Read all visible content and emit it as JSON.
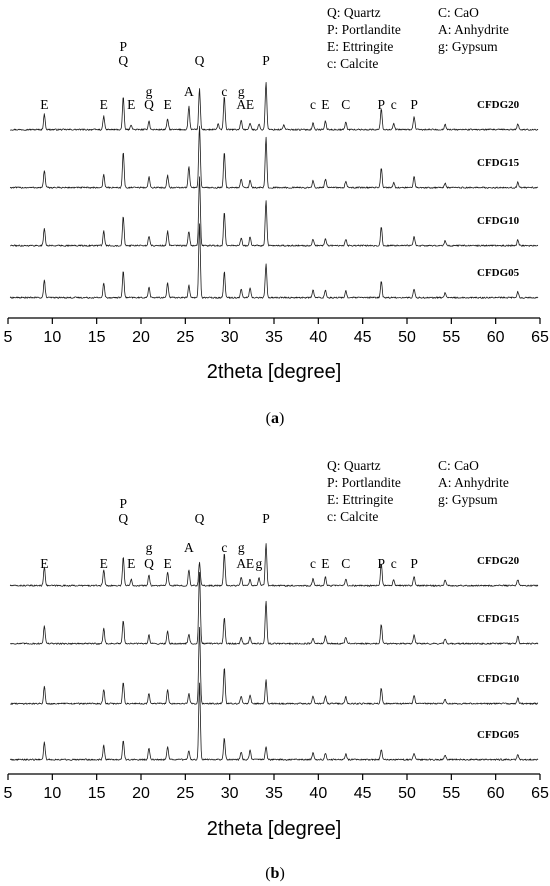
{
  "chart_data": [
    {
      "type": "line",
      "panel": "a",
      "caption_letter": "a",
      "xlabel": "2theta [degree]",
      "ylabel": "",
      "xlim": [
        5,
        65
      ],
      "x_ticks": [
        5,
        10,
        15,
        20,
        25,
        30,
        35,
        40,
        45,
        50,
        55,
        60,
        65
      ],
      "legend": [
        {
          "code": "Q",
          "text": "Q: Quartz"
        },
        {
          "code": "C",
          "text": "C: CaO"
        },
        {
          "code": "P",
          "text": "P: Portlandite"
        },
        {
          "code": "A",
          "text": "A: Anhydrite"
        },
        {
          "code": "E",
          "text": "E: Ettringite"
        },
        {
          "code": "g",
          "text": "g: Gypsum"
        },
        {
          "code": "c",
          "text": "c: Calcite"
        }
      ],
      "series": [
        {
          "name": "CFDG20",
          "peaks": [
            {
              "x": 9.1,
              "h": 0.32
            },
            {
              "x": 15.8,
              "h": 0.28
            },
            {
              "x": 18.0,
              "h": 0.68
            },
            {
              "x": 18.9,
              "h": 0.1
            },
            {
              "x": 20.9,
              "h": 0.18
            },
            {
              "x": 23.0,
              "h": 0.22
            },
            {
              "x": 25.4,
              "h": 0.48
            },
            {
              "x": 26.6,
              "h": 0.85
            },
            {
              "x": 28.7,
              "h": 0.12
            },
            {
              "x": 29.4,
              "h": 0.7
            },
            {
              "x": 31.3,
              "h": 0.2
            },
            {
              "x": 32.3,
              "h": 0.14
            },
            {
              "x": 33.3,
              "h": 0.12
            },
            {
              "x": 34.1,
              "h": 1.0
            },
            {
              "x": 36.1,
              "h": 0.1
            },
            {
              "x": 39.4,
              "h": 0.14
            },
            {
              "x": 40.8,
              "h": 0.18
            },
            {
              "x": 43.1,
              "h": 0.16
            },
            {
              "x": 47.1,
              "h": 0.45
            },
            {
              "x": 48.5,
              "h": 0.12
            },
            {
              "x": 50.8,
              "h": 0.28
            },
            {
              "x": 54.3,
              "h": 0.12
            },
            {
              "x": 62.5,
              "h": 0.12
            }
          ]
        },
        {
          "name": "CFDG15",
          "peaks": [
            {
              "x": 9.1,
              "h": 0.36
            },
            {
              "x": 15.8,
              "h": 0.28
            },
            {
              "x": 18.0,
              "h": 0.75
            },
            {
              "x": 20.9,
              "h": 0.22
            },
            {
              "x": 23.0,
              "h": 0.26
            },
            {
              "x": 25.4,
              "h": 0.44
            },
            {
              "x": 26.6,
              "h": 1.3
            },
            {
              "x": 29.4,
              "h": 0.75
            },
            {
              "x": 31.3,
              "h": 0.18
            },
            {
              "x": 32.3,
              "h": 0.16
            },
            {
              "x": 34.1,
              "h": 1.05
            },
            {
              "x": 39.4,
              "h": 0.14
            },
            {
              "x": 40.8,
              "h": 0.18
            },
            {
              "x": 43.1,
              "h": 0.14
            },
            {
              "x": 47.1,
              "h": 0.42
            },
            {
              "x": 48.5,
              "h": 0.1
            },
            {
              "x": 50.8,
              "h": 0.24
            },
            {
              "x": 54.3,
              "h": 0.1
            },
            {
              "x": 62.5,
              "h": 0.12
            }
          ]
        },
        {
          "name": "CFDG10",
          "peaks": [
            {
              "x": 9.1,
              "h": 0.36
            },
            {
              "x": 15.8,
              "h": 0.3
            },
            {
              "x": 18.0,
              "h": 0.62
            },
            {
              "x": 20.9,
              "h": 0.2
            },
            {
              "x": 23.0,
              "h": 0.3
            },
            {
              "x": 25.4,
              "h": 0.3
            },
            {
              "x": 26.6,
              "h": 1.45
            },
            {
              "x": 29.4,
              "h": 0.7
            },
            {
              "x": 31.3,
              "h": 0.16
            },
            {
              "x": 32.3,
              "h": 0.18
            },
            {
              "x": 34.1,
              "h": 0.95
            },
            {
              "x": 39.4,
              "h": 0.14
            },
            {
              "x": 40.8,
              "h": 0.16
            },
            {
              "x": 43.1,
              "h": 0.14
            },
            {
              "x": 47.1,
              "h": 0.4
            },
            {
              "x": 50.8,
              "h": 0.2
            },
            {
              "x": 54.3,
              "h": 0.1
            },
            {
              "x": 62.5,
              "h": 0.12
            }
          ]
        },
        {
          "name": "CFDG05",
          "peaks": [
            {
              "x": 9.1,
              "h": 0.36
            },
            {
              "x": 15.8,
              "h": 0.3
            },
            {
              "x": 18.0,
              "h": 0.55
            },
            {
              "x": 20.9,
              "h": 0.22
            },
            {
              "x": 23.0,
              "h": 0.32
            },
            {
              "x": 25.4,
              "h": 0.26
            },
            {
              "x": 26.6,
              "h": 1.55
            },
            {
              "x": 29.4,
              "h": 0.55
            },
            {
              "x": 31.3,
              "h": 0.18
            },
            {
              "x": 32.3,
              "h": 0.2
            },
            {
              "x": 34.1,
              "h": 0.7
            },
            {
              "x": 39.4,
              "h": 0.16
            },
            {
              "x": 40.8,
              "h": 0.16
            },
            {
              "x": 43.1,
              "h": 0.14
            },
            {
              "x": 47.1,
              "h": 0.35
            },
            {
              "x": 50.8,
              "h": 0.18
            },
            {
              "x": 54.3,
              "h": 0.1
            },
            {
              "x": 62.5,
              "h": 0.12
            }
          ]
        }
      ],
      "annotations": [
        {
          "text": "E",
          "x": 9.1,
          "row": 3
        },
        {
          "text": "E",
          "x": 15.8,
          "row": 3
        },
        {
          "text": "P",
          "x": 18.0,
          "row": 0
        },
        {
          "text": "Q",
          "x": 18.0,
          "row": 1
        },
        {
          "text": "E",
          "x": 18.9,
          "row": 3
        },
        {
          "text": "g",
          "x": 20.9,
          "row": 2
        },
        {
          "text": "Q",
          "x": 20.9,
          "row": 3
        },
        {
          "text": "E",
          "x": 23.0,
          "row": 3
        },
        {
          "text": "A",
          "x": 25.4,
          "row": 2
        },
        {
          "text": "Q",
          "x": 26.6,
          "row": 1
        },
        {
          "text": "c",
          "x": 29.4,
          "row": 2
        },
        {
          "text": "g",
          "x": 31.3,
          "row": 2
        },
        {
          "text": "A",
          "x": 31.3,
          "row": 3
        },
        {
          "text": "E",
          "x": 32.3,
          "row": 3
        },
        {
          "text": "P",
          "x": 34.1,
          "row": 1
        },
        {
          "text": "c",
          "x": 39.4,
          "row": 3
        },
        {
          "text": "E",
          "x": 40.8,
          "row": 3
        },
        {
          "text": "C",
          "x": 43.1,
          "row": 3
        },
        {
          "text": "P",
          "x": 47.1,
          "row": 3
        },
        {
          "text": "c",
          "x": 48.5,
          "row": 3
        },
        {
          "text": "P",
          "x": 50.8,
          "row": 3
        }
      ]
    },
    {
      "type": "line",
      "panel": "b",
      "caption_letter": "b",
      "xlabel": "2theta [degree]",
      "ylabel": "",
      "xlim": [
        5,
        65
      ],
      "x_ticks": [
        5,
        10,
        15,
        20,
        25,
        30,
        35,
        40,
        45,
        50,
        55,
        60,
        65
      ],
      "legend": [
        {
          "code": "Q",
          "text": "Q: Quartz"
        },
        {
          "code": "C",
          "text": "C: CaO"
        },
        {
          "code": "P",
          "text": "P: Portlandite"
        },
        {
          "code": "A",
          "text": "A: Anhydrite"
        },
        {
          "code": "E",
          "text": "E: Ettringite"
        },
        {
          "code": "g",
          "text": "g: Gypsum"
        },
        {
          "code": "c",
          "text": "c: Calcite"
        }
      ],
      "series": [
        {
          "name": "CFDG20",
          "peaks": [
            {
              "x": 9.1,
              "h": 0.4
            },
            {
              "x": 15.8,
              "h": 0.34
            },
            {
              "x": 18.0,
              "h": 0.6
            },
            {
              "x": 18.9,
              "h": 0.14
            },
            {
              "x": 20.9,
              "h": 0.22
            },
            {
              "x": 23.0,
              "h": 0.28
            },
            {
              "x": 25.4,
              "h": 0.32
            },
            {
              "x": 26.6,
              "h": 0.5
            },
            {
              "x": 29.4,
              "h": 0.68
            },
            {
              "x": 31.3,
              "h": 0.18
            },
            {
              "x": 32.3,
              "h": 0.14
            },
            {
              "x": 33.3,
              "h": 0.16
            },
            {
              "x": 34.1,
              "h": 0.88
            },
            {
              "x": 39.4,
              "h": 0.14
            },
            {
              "x": 40.8,
              "h": 0.18
            },
            {
              "x": 43.1,
              "h": 0.14
            },
            {
              "x": 47.1,
              "h": 0.46
            },
            {
              "x": 48.5,
              "h": 0.12
            },
            {
              "x": 50.8,
              "h": 0.2
            },
            {
              "x": 54.3,
              "h": 0.12
            },
            {
              "x": 62.5,
              "h": 0.12
            }
          ]
        },
        {
          "name": "CFDG15",
          "peaks": [
            {
              "x": 9.1,
              "h": 0.38
            },
            {
              "x": 15.8,
              "h": 0.32
            },
            {
              "x": 18.0,
              "h": 0.48
            },
            {
              "x": 20.9,
              "h": 0.18
            },
            {
              "x": 23.0,
              "h": 0.26
            },
            {
              "x": 25.4,
              "h": 0.2
            },
            {
              "x": 26.6,
              "h": 1.5
            },
            {
              "x": 29.4,
              "h": 0.55
            },
            {
              "x": 31.3,
              "h": 0.14
            },
            {
              "x": 32.3,
              "h": 0.14
            },
            {
              "x": 34.1,
              "h": 0.9
            },
            {
              "x": 39.4,
              "h": 0.12
            },
            {
              "x": 40.8,
              "h": 0.16
            },
            {
              "x": 43.1,
              "h": 0.14
            },
            {
              "x": 47.1,
              "h": 0.4
            },
            {
              "x": 50.8,
              "h": 0.2
            },
            {
              "x": 54.3,
              "h": 0.1
            },
            {
              "x": 62.5,
              "h": 0.16
            }
          ]
        },
        {
          "name": "CFDG10",
          "peaks": [
            {
              "x": 9.1,
              "h": 0.36
            },
            {
              "x": 15.8,
              "h": 0.3
            },
            {
              "x": 18.0,
              "h": 0.46
            },
            {
              "x": 20.9,
              "h": 0.22
            },
            {
              "x": 23.0,
              "h": 0.28
            },
            {
              "x": 25.4,
              "h": 0.2
            },
            {
              "x": 26.6,
              "h": 1.6
            },
            {
              "x": 29.4,
              "h": 0.75
            },
            {
              "x": 31.3,
              "h": 0.16
            },
            {
              "x": 32.3,
              "h": 0.18
            },
            {
              "x": 34.1,
              "h": 0.5
            },
            {
              "x": 39.4,
              "h": 0.16
            },
            {
              "x": 40.8,
              "h": 0.16
            },
            {
              "x": 43.1,
              "h": 0.14
            },
            {
              "x": 47.1,
              "h": 0.32
            },
            {
              "x": 50.8,
              "h": 0.18
            },
            {
              "x": 54.3,
              "h": 0.1
            },
            {
              "x": 62.5,
              "h": 0.12
            }
          ]
        },
        {
          "name": "CFDG05",
          "peaks": [
            {
              "x": 9.1,
              "h": 0.36
            },
            {
              "x": 15.8,
              "h": 0.3
            },
            {
              "x": 18.0,
              "h": 0.4
            },
            {
              "x": 20.9,
              "h": 0.24
            },
            {
              "x": 23.0,
              "h": 0.28
            },
            {
              "x": 25.4,
              "h": 0.18
            },
            {
              "x": 26.6,
              "h": 1.6
            },
            {
              "x": 29.4,
              "h": 0.45
            },
            {
              "x": 31.3,
              "h": 0.16
            },
            {
              "x": 32.3,
              "h": 0.2
            },
            {
              "x": 34.1,
              "h": 0.28
            },
            {
              "x": 39.4,
              "h": 0.14
            },
            {
              "x": 40.8,
              "h": 0.14
            },
            {
              "x": 43.1,
              "h": 0.12
            },
            {
              "x": 47.1,
              "h": 0.22
            },
            {
              "x": 50.8,
              "h": 0.14
            },
            {
              "x": 54.3,
              "h": 0.1
            },
            {
              "x": 62.5,
              "h": 0.1
            }
          ]
        }
      ],
      "annotations": [
        {
          "text": "E",
          "x": 9.1,
          "row": 3
        },
        {
          "text": "E",
          "x": 15.8,
          "row": 3
        },
        {
          "text": "P",
          "x": 18.0,
          "row": 0
        },
        {
          "text": "Q",
          "x": 18.0,
          "row": 1
        },
        {
          "text": "E",
          "x": 18.9,
          "row": 3
        },
        {
          "text": "g",
          "x": 20.9,
          "row": 2
        },
        {
          "text": "Q",
          "x": 20.9,
          "row": 3
        },
        {
          "text": "E",
          "x": 23.0,
          "row": 3
        },
        {
          "text": "A",
          "x": 25.4,
          "row": 2
        },
        {
          "text": "Q",
          "x": 26.6,
          "row": 1
        },
        {
          "text": "c",
          "x": 29.4,
          "row": 2
        },
        {
          "text": "g",
          "x": 31.3,
          "row": 2
        },
        {
          "text": "A",
          "x": 31.3,
          "row": 3
        },
        {
          "text": "E",
          "x": 32.3,
          "row": 3
        },
        {
          "text": "g",
          "x": 33.3,
          "row": 3
        },
        {
          "text": "P",
          "x": 34.1,
          "row": 1
        },
        {
          "text": "c",
          "x": 39.4,
          "row": 3
        },
        {
          "text": "E",
          "x": 40.8,
          "row": 3
        },
        {
          "text": "C",
          "x": 43.1,
          "row": 3
        },
        {
          "text": "P",
          "x": 47.1,
          "row": 3
        },
        {
          "text": "c",
          "x": 48.5,
          "row": 3
        },
        {
          "text": "P",
          "x": 50.8,
          "row": 3
        }
      ]
    }
  ]
}
